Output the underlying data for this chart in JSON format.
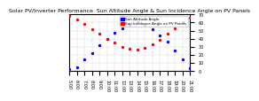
{
  "title": "Solar PV/Inverter Performance  Sun Altitude Angle & Sun Incidence Angle on PV Panels",
  "series": [
    {
      "label": "Sun Altitude Angle",
      "color": "#0000ff",
      "x": [
        0,
        1,
        2,
        3,
        4,
        5,
        6,
        7,
        8,
        9,
        10,
        11,
        12,
        13,
        14,
        15,
        16
      ],
      "y": [
        2,
        5,
        14,
        22,
        32,
        40,
        47,
        53,
        57,
        60,
        57,
        52,
        44,
        36,
        25,
        14,
        4
      ]
    },
    {
      "label": "Sun Incidence Angle on PV Panels",
      "color": "#ff0000",
      "x": [
        0,
        1,
        2,
        3,
        4,
        5,
        6,
        7,
        8,
        9,
        10,
        11,
        12,
        13,
        14,
        15,
        16
      ],
      "y": [
        68,
        64,
        58,
        52,
        46,
        40,
        35,
        30,
        28,
        27,
        29,
        33,
        39,
        46,
        53,
        60,
        66
      ]
    }
  ],
  "xlim": [
    0,
    16
  ],
  "ylim": [
    0,
    70
  ],
  "yticks": [
    0,
    10,
    20,
    30,
    40,
    50,
    60,
    70
  ],
  "xtick_labels": [
    "5:00",
    "6:00",
    "7:00",
    "8:00",
    "9:00",
    "10:00",
    "11:00",
    "12:00",
    "13:00",
    "14:00",
    "15:00",
    "16:00",
    "17:00",
    "18:00",
    "19:00",
    "20:00",
    "21:00"
  ],
  "grid_color": "#aaaaaa",
  "bg_color": "#ffffff",
  "title_fontsize": 4.5,
  "axis_fontsize": 3.5,
  "legend_fontsize": 3.0
}
